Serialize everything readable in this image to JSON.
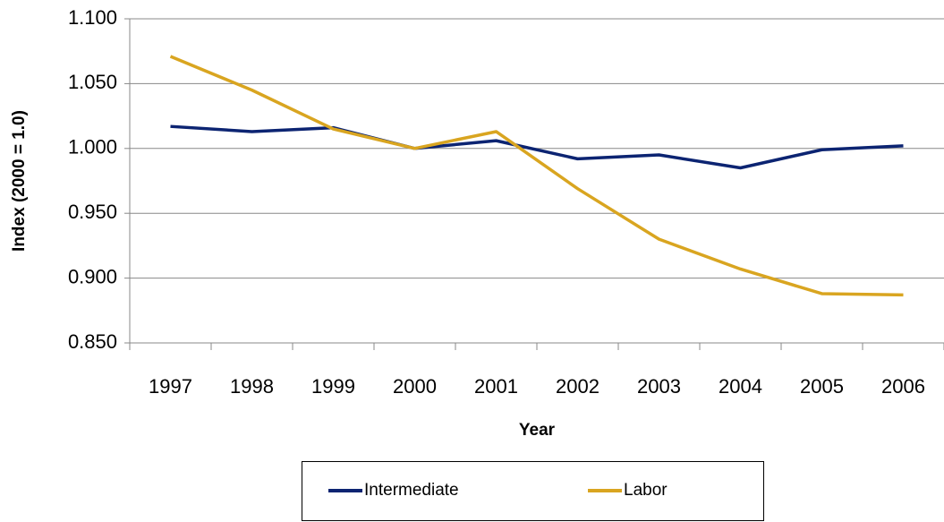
{
  "chart_data": {
    "type": "line",
    "categories": [
      "1997",
      "1998",
      "1999",
      "2000",
      "2001",
      "2002",
      "2003",
      "2004",
      "2005",
      "2006"
    ],
    "series": [
      {
        "name": "Intermediate",
        "color": "#0c2472",
        "values": [
          1.017,
          1.013,
          1.016,
          1.0,
          1.006,
          0.992,
          0.995,
          0.985,
          0.999,
          1.002
        ]
      },
      {
        "name": "Labor",
        "color": "#d9a520",
        "values": [
          1.071,
          1.045,
          1.015,
          1.0,
          1.013,
          0.969,
          0.93,
          0.907,
          0.888,
          0.887
        ]
      }
    ],
    "ylim": [
      0.85,
      1.1
    ],
    "yticks": [
      {
        "value": 0.85,
        "label": "0.850"
      },
      {
        "value": 0.9,
        "label": "0.900"
      },
      {
        "value": 0.95,
        "label": "0.950"
      },
      {
        "value": 1,
        "label": "1.000"
      },
      {
        "value": 1.05,
        "label": "1.050"
      },
      {
        "value": 1.1,
        "label": "1.100"
      }
    ],
    "y_label": "Index (2000 = 1.0)",
    "x_label": "Year",
    "grid": true,
    "legend": "bottom"
  }
}
